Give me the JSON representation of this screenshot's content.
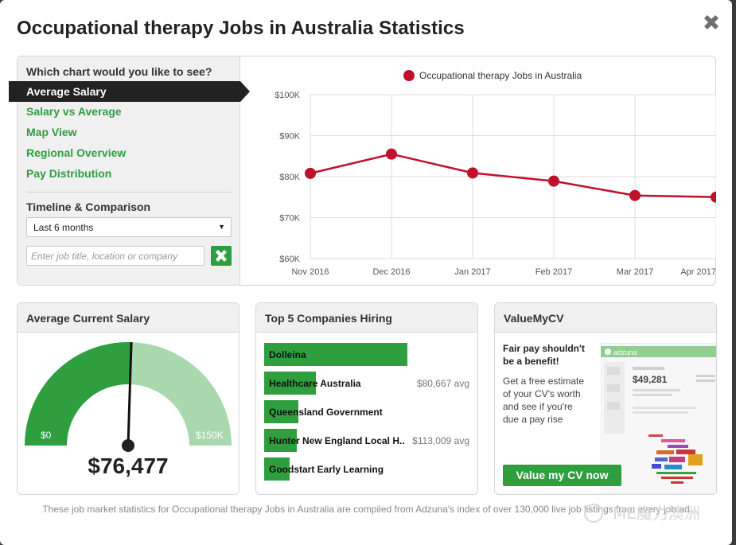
{
  "modal": {
    "title": "Occupational therapy Jobs in Australia Statistics"
  },
  "menu": {
    "heading": "Which chart would you like to see?",
    "items": [
      {
        "label": "Average Salary",
        "active": true
      },
      {
        "label": "Salary vs Average",
        "active": false
      },
      {
        "label": "Map View",
        "active": false
      },
      {
        "label": "Regional Overview",
        "active": false
      },
      {
        "label": "Pay Distribution",
        "active": false
      }
    ],
    "timeline_heading": "Timeline & Comparison",
    "timeline_select": "Last 6 months",
    "search_placeholder": "Enter job title, location or company"
  },
  "chart_data": {
    "type": "line",
    "legend": "Occupational therapy Jobs in Australia",
    "legend_position": "top",
    "x": [
      "Nov 2016",
      "Dec 2016",
      "Jan 2017",
      "Feb 2017",
      "Mar 2017",
      "Apr 2017"
    ],
    "y": [
      80800,
      85500,
      80900,
      78900,
      75400,
      75000
    ],
    "y_ticks": [
      "$100K",
      "$90K",
      "$80K",
      "$70K",
      "$60K"
    ],
    "ylim": [
      60000,
      100000
    ],
    "grid": true,
    "line_color": "#c0102a"
  },
  "salary_card": {
    "heading": "Average Current Salary",
    "value": "$76,477",
    "min_label": "$0",
    "max_label": "$150K",
    "fraction": 0.51
  },
  "companies_card": {
    "heading": "Top 5 Companies Hiring",
    "items": [
      {
        "name": "Dolleina",
        "avg": "",
        "share": 1.0
      },
      {
        "name": "Healthcare Australia",
        "avg": "$80,667 avg",
        "share": 0.36
      },
      {
        "name": "Queensland Government",
        "avg": "",
        "share": 0.24
      },
      {
        "name": "Hunter New England Local H..",
        "avg": "$113,009 avg",
        "share": 0.23
      },
      {
        "name": "Goodstart Early Learning",
        "avg": "",
        "share": 0.18
      }
    ]
  },
  "cv_card": {
    "heading": "ValueMyCV",
    "benefit": "Fair pay shouldn't be a benefit!",
    "description": "Get a free estimate of your CV's worth and see if you're due a pay rise",
    "button": "Value my CV now",
    "preview_brand": "adzuna",
    "preview_value": "$49,281"
  },
  "footer": {
    "text": "These job market statistics for Occupational therapy Jobs in Australia are compiled from Adzuna's index of over 130,000 live job listings from every job ad"
  },
  "watermark": {
    "text": "ME魔力澳洲"
  },
  "colors": {
    "accent": "#2e9e3e",
    "accent_light": "#a9d8ae",
    "series": "#c0102a"
  }
}
